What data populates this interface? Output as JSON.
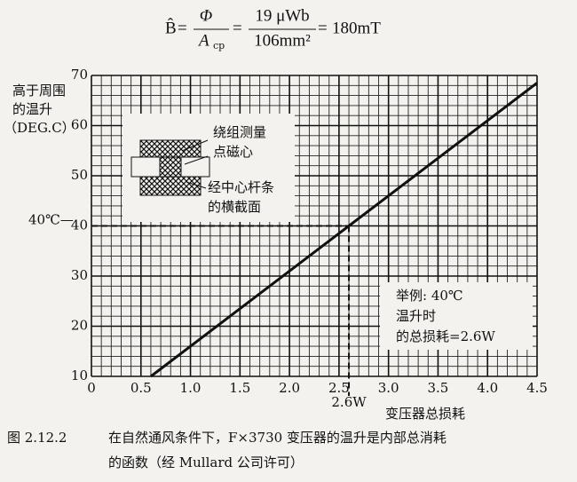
{
  "formula": {
    "lhs": "B̂",
    "equals": "=",
    "frac1_num": "Φ",
    "frac1_den": "A",
    "frac1_den_sub": "cp",
    "frac2_num": "19 μWb",
    "frac2_den": "106mm²",
    "result": "180mT"
  },
  "chart_data": {
    "type": "line",
    "y_label": [
      "高于周围",
      "的温升",
      "（DEG.C）"
    ],
    "x_label": "变压器总损耗",
    "x": [
      0.6,
      2.6,
      4.5
    ],
    "series": [
      {
        "name": "温升",
        "color": "#111111",
        "values": [
          10,
          40,
          68.5
        ]
      }
    ],
    "xlim": [
      0,
      4.5
    ],
    "ylim": [
      10,
      70
    ],
    "xticks": [
      0,
      0.5,
      {
        "value": 1,
        "label": "1.0"
      },
      1.5,
      {
        "value": 2,
        "label": "2.0"
      },
      2.5,
      {
        "value": 3,
        "label": "3.0"
      },
      3.5,
      {
        "value": 4,
        "label": "4.0"
      },
      4.5
    ],
    "yticks": [
      10,
      20,
      30,
      40,
      50,
      60,
      70
    ],
    "grid": true,
    "minor_grid": {
      "x": 0.1,
      "y": 2
    },
    "reference_point": {
      "x": 2.6,
      "y": 40,
      "x_label": "2.6W",
      "y_label": "40℃—"
    },
    "inset_text": [
      "绕组测量",
      "点磁心",
      "经中心杆条",
      "的横截面"
    ],
    "annotation": [
      "举例: 40℃",
      "温升时",
      "的总损耗=2.6W"
    ]
  },
  "caption": {
    "number": "图 2.12.2",
    "lines": [
      "在自然通风条件下，F×3730 变压器的温升是内部总消耗",
      "的函数（经 Mullard 公司许可）"
    ]
  }
}
